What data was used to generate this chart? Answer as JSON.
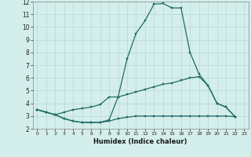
{
  "xlabel": "Humidex (Indice chaleur)",
  "bg_color": "#d4eeec",
  "line_color": "#1e6b65",
  "grid_color": "#b8d8d4",
  "xlim": [
    -0.5,
    23.5
  ],
  "ylim": [
    2,
    12
  ],
  "yticks": [
    2,
    3,
    4,
    5,
    6,
    7,
    8,
    9,
    10,
    11,
    12
  ],
  "xticks": [
    0,
    1,
    2,
    3,
    4,
    5,
    6,
    7,
    8,
    9,
    10,
    11,
    12,
    13,
    14,
    15,
    16,
    17,
    18,
    19,
    20,
    21,
    22,
    23
  ],
  "line1_x": [
    0,
    1,
    2,
    3,
    4,
    5,
    6,
    7,
    8,
    9,
    10,
    11,
    12,
    13,
    14,
    15,
    16,
    17,
    18,
    19,
    20,
    21,
    22
  ],
  "line1_y": [
    3.5,
    3.3,
    3.1,
    2.8,
    2.6,
    2.5,
    2.5,
    2.5,
    2.7,
    4.5,
    7.5,
    9.5,
    10.5,
    11.8,
    11.85,
    11.5,
    11.5,
    8.0,
    6.3,
    5.4,
    4.0,
    3.7,
    2.95
  ],
  "line2_x": [
    0,
    1,
    2,
    3,
    4,
    5,
    6,
    7,
    8,
    9,
    10,
    11,
    12,
    13,
    14,
    15,
    16,
    17,
    18,
    19,
    20,
    21,
    22
  ],
  "line2_y": [
    3.5,
    3.3,
    3.1,
    3.3,
    3.5,
    3.6,
    3.7,
    3.9,
    4.5,
    4.5,
    4.7,
    4.9,
    5.1,
    5.3,
    5.5,
    5.6,
    5.8,
    6.0,
    6.1,
    5.4,
    4.0,
    3.7,
    2.95
  ],
  "line3_x": [
    0,
    1,
    2,
    3,
    4,
    5,
    6,
    7,
    8,
    9,
    10,
    11,
    12,
    13,
    14,
    15,
    16,
    17,
    18,
    19,
    20,
    21,
    22
  ],
  "line3_y": [
    3.5,
    3.3,
    3.1,
    2.8,
    2.6,
    2.5,
    2.5,
    2.5,
    2.6,
    2.8,
    2.9,
    3.0,
    3.0,
    3.0,
    3.0,
    3.0,
    3.0,
    3.0,
    3.0,
    3.0,
    3.0,
    3.0,
    2.95
  ]
}
